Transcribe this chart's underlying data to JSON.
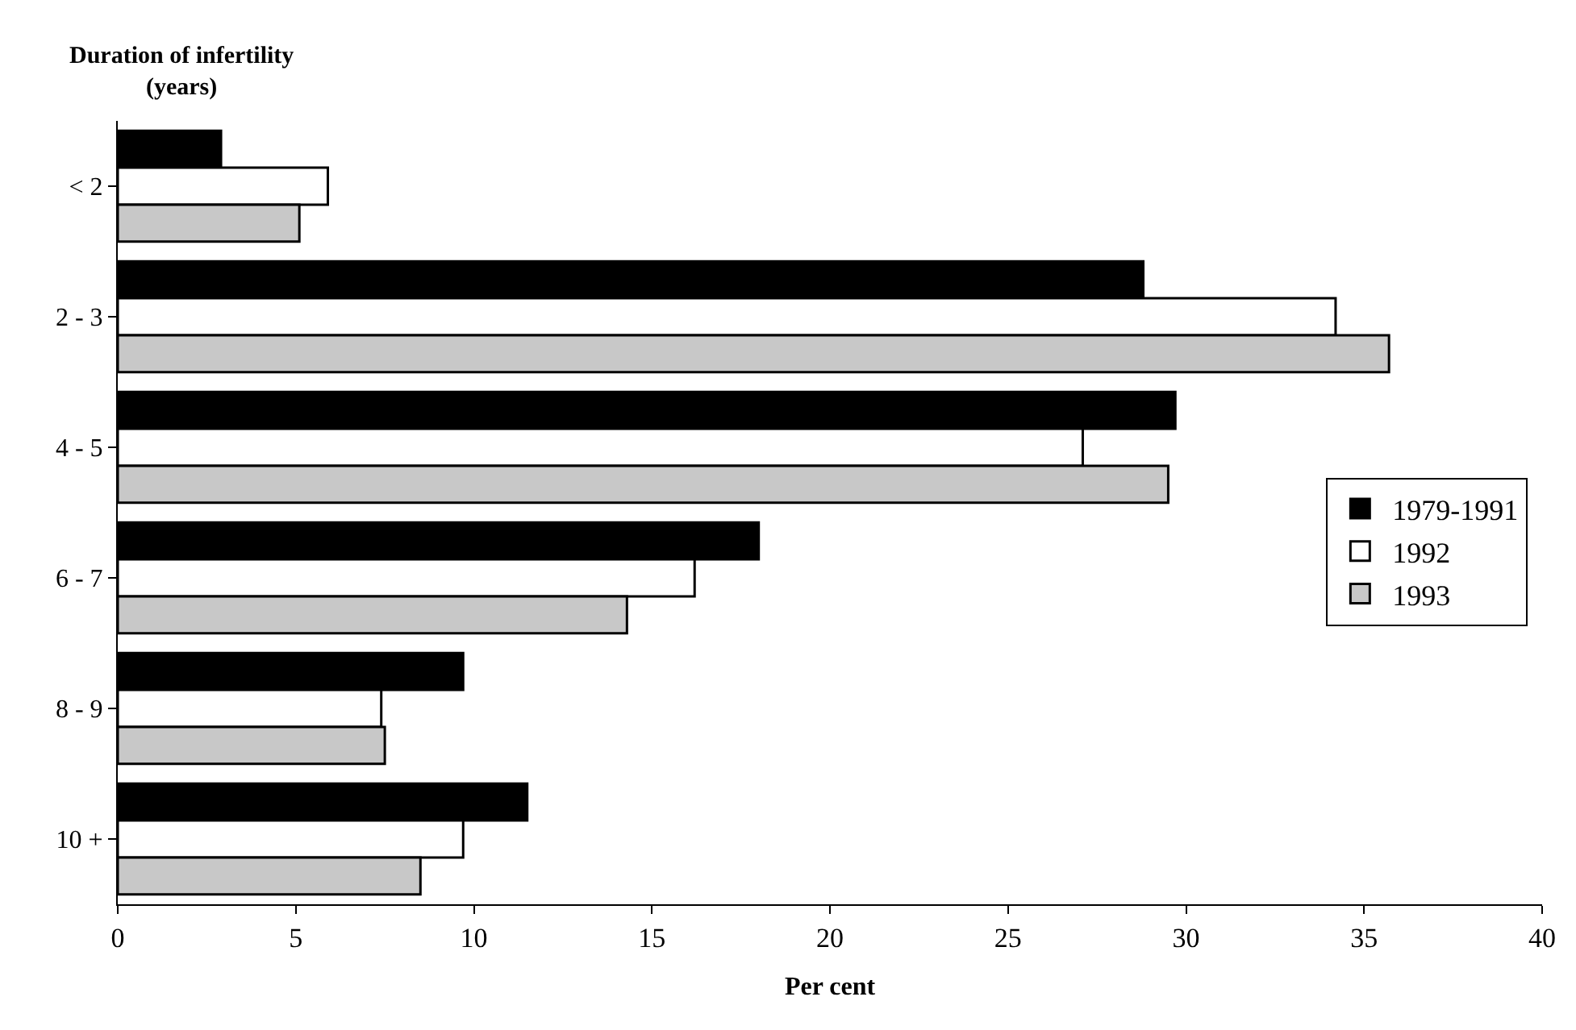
{
  "chart_data": {
    "type": "bar",
    "orientation": "horizontal",
    "xlabel": "Per cent",
    "ylabel": "Duration of infertility\n(years)",
    "categories": [
      "< 2",
      "2 - 3",
      "4 - 5",
      "6 - 7",
      "8 - 9",
      "10 +"
    ],
    "series": [
      {
        "name": "1979-1991",
        "color": "#000000",
        "values": [
          2.9,
          28.8,
          29.7,
          18.0,
          9.7,
          11.5
        ]
      },
      {
        "name": "1992",
        "color": "#ffffff",
        "values": [
          5.9,
          34.2,
          27.1,
          16.2,
          7.4,
          9.7
        ]
      },
      {
        "name": "1993",
        "color": "#c8c8c8",
        "values": [
          5.1,
          35.7,
          29.5,
          14.3,
          7.5,
          8.5
        ]
      }
    ],
    "xlim": [
      0,
      40
    ],
    "xticks": [
      0,
      5,
      10,
      15,
      20,
      25,
      30,
      35,
      40
    ],
    "legend": "right"
  }
}
